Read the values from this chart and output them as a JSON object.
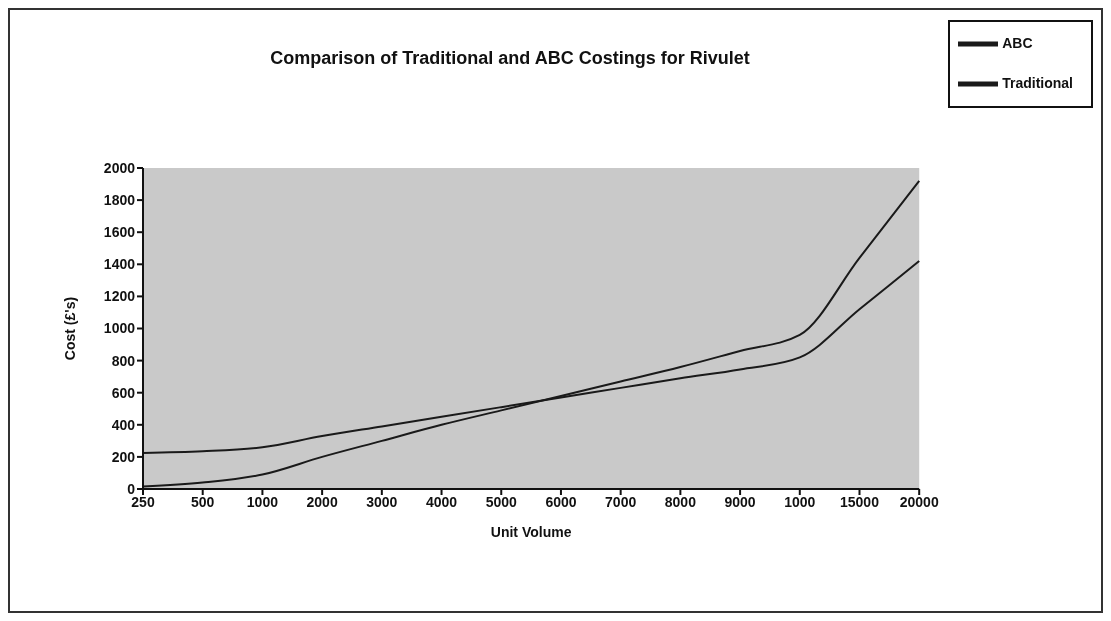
{
  "chart_data": {
    "type": "line",
    "title": "Comparison of Traditional and ABC Costings for Rivulet",
    "xlabel": "Unit Volume",
    "ylabel": "Cost (£'s)",
    "categories": [
      "250",
      "500",
      "1000",
      "2000",
      "3000",
      "4000",
      "5000",
      "6000",
      "7000",
      "8000",
      "9000",
      "1000",
      "15000",
      "20000"
    ],
    "series": [
      {
        "name": "ABC",
        "color": "#1a1a1a",
        "values": [
          225,
          235,
          260,
          330,
          390,
          450,
          510,
          570,
          630,
          690,
          745,
          820,
          1120,
          1420
        ]
      },
      {
        "name": "Traditional",
        "color": "#1a1a1a",
        "values": [
          15,
          40,
          90,
          200,
          300,
          400,
          490,
          580,
          670,
          760,
          860,
          960,
          1440,
          1920
        ]
      }
    ],
    "ylim": [
      0,
      2000
    ],
    "yticks": [
      0,
      200,
      400,
      600,
      800,
      1000,
      1200,
      1400,
      1600,
      1800,
      2000
    ],
    "grid": false,
    "legend": "top right",
    "marker": "none",
    "line_style": "solid"
  }
}
